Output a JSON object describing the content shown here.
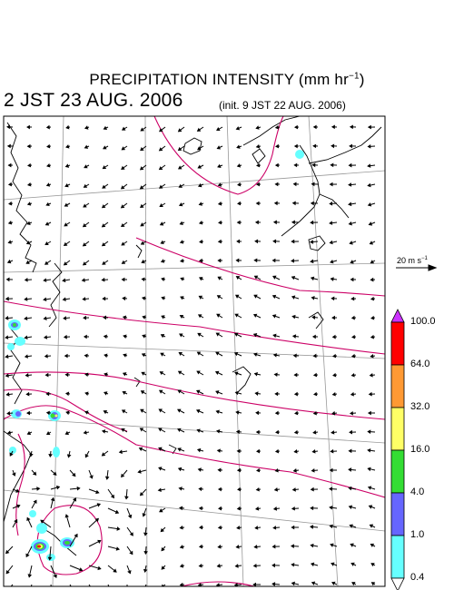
{
  "title_main": "PRECIPITATION INTENSITY (mm hr",
  "title_exp": "−1",
  "title_close": ")",
  "valid_time": "2 JST 23 AUG. 2006",
  "init_time": "(init. 9 JST 22 AUG. 2006)",
  "wind_scale": {
    "label": "20 m s",
    "exp": "−1"
  },
  "colorbar": {
    "levels": [
      "100.0",
      "64.0",
      "32.0",
      "16.0",
      "4.0",
      "1.0",
      "0.4"
    ],
    "colors": [
      "#ff0000",
      "#ff9933",
      "#ffff66",
      "#33dd33",
      "#6666ff",
      "#66ffff"
    ],
    "over_color": "#cc33ff"
  },
  "colors": {
    "coast": "#000000",
    "contour": "#cc0066",
    "grid": "#999999",
    "frame": "#000000"
  }
}
